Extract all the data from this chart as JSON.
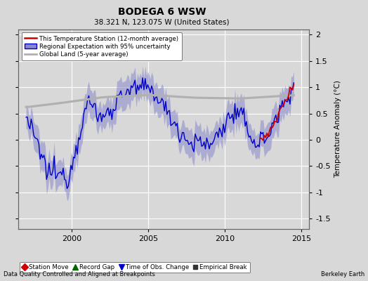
{
  "title": "BODEGA 6 WSW",
  "subtitle": "38.321 N, 123.075 W (United States)",
  "ylabel": "Temperature Anomaly (°C)",
  "xlabel_bottom_left": "Data Quality Controlled and Aligned at Breakpoints",
  "xlabel_bottom_right": "Berkeley Earth",
  "ylim": [
    -1.7,
    2.1
  ],
  "yticks": [
    -1.5,
    -1.0,
    -0.5,
    0,
    0.5,
    1.0,
    1.5,
    2.0
  ],
  "xlim_start": 1996.5,
  "xlim_end": 2015.5,
  "xticks": [
    2000,
    2005,
    2010,
    2015
  ],
  "bg_color": "#d8d8d8",
  "plot_bg_color": "#d8d8d8",
  "grid_color": "#ffffff",
  "blue_line_color": "#0000cc",
  "blue_fill_color": "#8888cc",
  "red_line_color": "#cc0000",
  "gray_line_color": "#b0b0b0",
  "legend_labels": [
    "This Temperature Station (12-month average)",
    "Regional Expectation with 95% uncertainty",
    "Global Land (5-year average)"
  ],
  "bottom_legend": [
    {
      "marker": "D",
      "color": "#cc0000",
      "label": "Station Move"
    },
    {
      "marker": "^",
      "color": "#006600",
      "label": "Record Gap"
    },
    {
      "marker": "v",
      "color": "#0000cc",
      "label": "Time of Obs. Change"
    },
    {
      "marker": "s",
      "color": "#333333",
      "label": "Empirical Break"
    }
  ]
}
